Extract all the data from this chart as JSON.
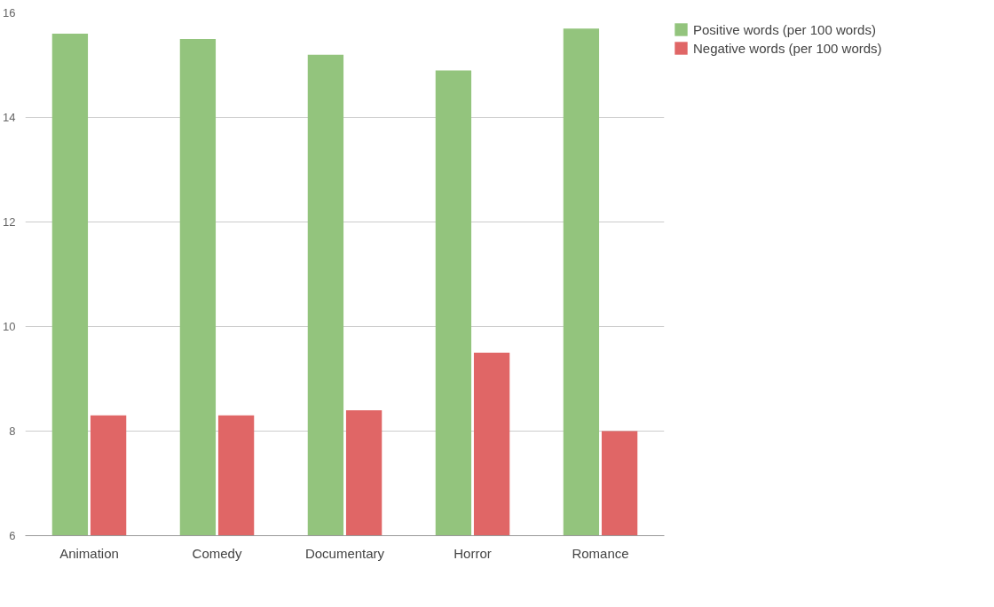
{
  "chart_data": {
    "type": "bar",
    "categories": [
      "Animation",
      "Comedy",
      "Documentary",
      "Horror",
      "Romance"
    ],
    "series": [
      {
        "name": "Positive words (per 100 words)",
        "color": "#93c47d",
        "values": [
          15.6,
          15.5,
          15.2,
          14.9,
          15.7
        ]
      },
      {
        "name": "Negative words (per 100 words)",
        "color": "#e06666",
        "values": [
          8.3,
          8.3,
          8.4,
          9.5,
          8.0
        ]
      }
    ],
    "ylim": [
      6,
      16
    ],
    "yticks": [
      6,
      8,
      10,
      12,
      14,
      16
    ],
    "grid": "y",
    "legend": "top right"
  }
}
